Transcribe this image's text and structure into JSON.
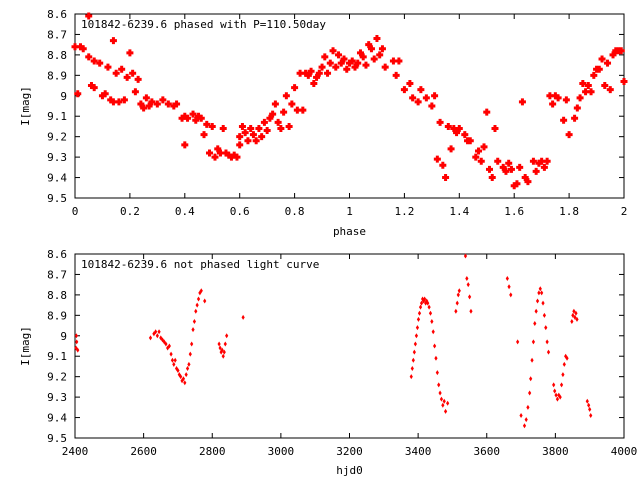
{
  "chart_data": [
    {
      "type": "scatter",
      "title": "101842-6239.6 phased with P=110.50day",
      "xlabel": "phase",
      "ylabel": "I[mag]",
      "xlim": [
        0,
        2
      ],
      "ylim": [
        8.6,
        9.5
      ],
      "y_inverted": true,
      "grid": false,
      "x_ticks": [
        "0",
        "0.2",
        "0.4",
        "0.6",
        "0.8",
        "1",
        "1.2",
        "1.4",
        "1.6",
        "1.8",
        "2"
      ],
      "y_ticks": [
        "8.6",
        "8.7",
        "8.8",
        "8.9",
        "9",
        "9.1",
        "9.2",
        "9.3",
        "9.4",
        "9.5"
      ],
      "marker_color": "#ff0000",
      "points": [
        [
          0.0,
          8.76
        ],
        [
          0.01,
          8.99
        ],
        [
          0.02,
          8.76
        ],
        [
          0.03,
          8.77
        ],
        [
          0.05,
          8.61
        ],
        [
          0.05,
          8.81
        ],
        [
          0.06,
          8.95
        ],
        [
          0.07,
          8.96
        ],
        [
          0.07,
          8.83
        ],
        [
          0.09,
          8.84
        ],
        [
          0.1,
          9.0
        ],
        [
          0.11,
          8.99
        ],
        [
          0.12,
          8.86
        ],
        [
          0.13,
          9.02
        ],
        [
          0.14,
          8.73
        ],
        [
          0.14,
          9.03
        ],
        [
          0.15,
          8.89
        ],
        [
          0.16,
          9.03
        ],
        [
          0.17,
          8.87
        ],
        [
          0.18,
          9.02
        ],
        [
          0.19,
          8.91
        ],
        [
          0.2,
          8.79
        ],
        [
          0.21,
          8.89
        ],
        [
          0.22,
          8.98
        ],
        [
          0.23,
          8.92
        ],
        [
          0.24,
          9.04
        ],
        [
          0.25,
          9.06
        ],
        [
          0.26,
          9.01
        ],
        [
          0.27,
          9.05
        ],
        [
          0.28,
          9.03
        ],
        [
          0.3,
          9.04
        ],
        [
          0.32,
          9.02
        ],
        [
          0.34,
          9.04
        ],
        [
          0.36,
          9.05
        ],
        [
          0.37,
          9.04
        ],
        [
          0.39,
          9.11
        ],
        [
          0.4,
          9.1
        ],
        [
          0.4,
          9.24
        ],
        [
          0.41,
          9.11
        ],
        [
          0.43,
          9.09
        ],
        [
          0.44,
          9.12
        ],
        [
          0.45,
          9.1
        ],
        [
          0.46,
          9.11
        ],
        [
          0.47,
          9.19
        ],
        [
          0.48,
          9.14
        ],
        [
          0.49,
          9.28
        ],
        [
          0.5,
          9.15
        ],
        [
          0.51,
          9.3
        ],
        [
          0.52,
          9.26
        ],
        [
          0.53,
          9.28
        ],
        [
          0.54,
          9.16
        ],
        [
          0.55,
          9.28
        ],
        [
          0.56,
          9.29
        ],
        [
          0.57,
          9.3
        ],
        [
          0.58,
          9.29
        ],
        [
          0.59,
          9.3
        ],
        [
          0.6,
          9.24
        ],
        [
          0.6,
          9.2
        ],
        [
          0.61,
          9.15
        ],
        [
          0.62,
          9.18
        ],
        [
          0.63,
          9.22
        ],
        [
          0.64,
          9.16
        ],
        [
          0.65,
          9.19
        ],
        [
          0.66,
          9.22
        ],
        [
          0.67,
          9.16
        ],
        [
          0.68,
          9.2
        ],
        [
          0.69,
          9.13
        ],
        [
          0.7,
          9.17
        ],
        [
          0.71,
          9.11
        ],
        [
          0.72,
          9.09
        ],
        [
          0.73,
          9.04
        ],
        [
          0.74,
          9.13
        ],
        [
          0.75,
          9.16
        ],
        [
          0.76,
          9.08
        ],
        [
          0.77,
          9.0
        ],
        [
          0.78,
          9.15
        ],
        [
          0.79,
          9.04
        ],
        [
          0.8,
          8.96
        ],
        [
          0.81,
          9.07
        ],
        [
          0.82,
          8.89
        ],
        [
          0.83,
          9.07
        ],
        [
          0.84,
          8.89
        ],
        [
          0.85,
          8.9
        ],
        [
          0.86,
          8.88
        ],
        [
          0.87,
          8.94
        ],
        [
          0.88,
          8.91
        ],
        [
          0.89,
          8.89
        ],
        [
          0.9,
          8.86
        ],
        [
          0.91,
          8.81
        ],
        [
          0.92,
          8.89
        ],
        [
          0.93,
          8.84
        ],
        [
          0.94,
          8.78
        ],
        [
          0.95,
          8.86
        ],
        [
          0.96,
          8.8
        ],
        [
          0.97,
          8.84
        ],
        [
          0.98,
          8.82
        ],
        [
          0.99,
          8.87
        ],
        [
          1.0,
          8.84
        ],
        [
          1.01,
          8.83
        ],
        [
          1.02,
          8.86
        ],
        [
          1.03,
          8.84
        ],
        [
          1.04,
          8.79
        ],
        [
          1.05,
          8.81
        ],
        [
          1.06,
          8.85
        ],
        [
          1.07,
          8.75
        ],
        [
          1.08,
          8.77
        ],
        [
          1.09,
          8.82
        ],
        [
          1.1,
          8.72
        ],
        [
          1.11,
          8.8
        ],
        [
          1.12,
          8.77
        ],
        [
          1.13,
          8.86
        ],
        [
          1.16,
          8.83
        ],
        [
          1.17,
          8.9
        ],
        [
          1.18,
          8.83
        ],
        [
          1.2,
          8.97
        ],
        [
          1.22,
          8.94
        ],
        [
          1.23,
          9.01
        ],
        [
          1.25,
          9.03
        ],
        [
          1.26,
          8.97
        ],
        [
          1.28,
          9.01
        ],
        [
          1.3,
          9.05
        ],
        [
          1.31,
          9.0
        ],
        [
          1.32,
          9.31
        ],
        [
          1.33,
          9.13
        ],
        [
          1.34,
          9.34
        ],
        [
          1.35,
          9.4
        ],
        [
          1.36,
          9.15
        ],
        [
          1.37,
          9.26
        ],
        [
          1.38,
          9.16
        ],
        [
          1.39,
          9.18
        ],
        [
          1.4,
          9.16
        ],
        [
          1.42,
          9.19
        ],
        [
          1.43,
          9.22
        ],
        [
          1.44,
          9.22
        ],
        [
          1.46,
          9.3
        ],
        [
          1.47,
          9.27
        ],
        [
          1.48,
          9.32
        ],
        [
          1.49,
          9.25
        ],
        [
          1.5,
          9.08
        ],
        [
          1.51,
          9.36
        ],
        [
          1.52,
          9.4
        ],
        [
          1.53,
          9.16
        ],
        [
          1.54,
          9.32
        ],
        [
          1.56,
          9.35
        ],
        [
          1.57,
          9.37
        ],
        [
          1.58,
          9.33
        ],
        [
          1.59,
          9.36
        ],
        [
          1.6,
          9.44
        ],
        [
          1.61,
          9.43
        ],
        [
          1.62,
          9.35
        ],
        [
          1.63,
          9.03
        ],
        [
          1.64,
          9.4
        ],
        [
          1.65,
          9.42
        ],
        [
          1.67,
          9.32
        ],
        [
          1.68,
          9.37
        ],
        [
          1.69,
          9.33
        ],
        [
          1.7,
          9.32
        ],
        [
          1.71,
          9.35
        ],
        [
          1.72,
          9.32
        ],
        [
          1.73,
          9.0
        ],
        [
          1.74,
          9.04
        ],
        [
          1.75,
          9.0
        ],
        [
          1.76,
          9.01
        ],
        [
          1.78,
          9.12
        ],
        [
          1.79,
          9.02
        ],
        [
          1.8,
          9.19
        ],
        [
          1.82,
          9.11
        ],
        [
          1.83,
          9.06
        ],
        [
          1.84,
          9.01
        ],
        [
          1.85,
          8.94
        ],
        [
          1.86,
          8.98
        ],
        [
          1.87,
          8.95
        ],
        [
          1.88,
          8.98
        ],
        [
          1.89,
          8.9
        ],
        [
          1.9,
          8.87
        ],
        [
          1.91,
          8.87
        ],
        [
          1.92,
          8.82
        ],
        [
          1.93,
          8.95
        ],
        [
          1.94,
          8.84
        ],
        [
          1.95,
          8.97
        ],
        [
          1.96,
          8.8
        ],
        [
          1.97,
          8.78
        ],
        [
          1.98,
          8.78
        ],
        [
          1.99,
          8.78
        ],
        [
          2.0,
          8.93
        ]
      ]
    },
    {
      "type": "scatter",
      "title": "101842-6239.6 not phased light curve",
      "xlabel": "hjd0",
      "ylabel": "I[mag]",
      "xlim": [
        2400,
        4000
      ],
      "ylim": [
        8.6,
        9.5
      ],
      "y_inverted": true,
      "grid": false,
      "x_ticks": [
        "2400",
        "2600",
        "2800",
        "3000",
        "3200",
        "3400",
        "3600",
        "3800",
        "4000"
      ],
      "y_ticks": [
        "8.6",
        "8.7",
        "8.8",
        "8.9",
        "9",
        "9.1",
        "9.2",
        "9.3",
        "9.4",
        "9.5"
      ],
      "marker_color": "#ff0000",
      "points": [
        [
          2403,
          9.06
        ],
        [
          2404,
          9.0
        ],
        [
          2405,
          9.03
        ],
        [
          2408,
          9.07
        ],
        [
          2620,
          9.01
        ],
        [
          2630,
          8.99
        ],
        [
          2635,
          8.98
        ],
        [
          2640,
          9.0
        ],
        [
          2645,
          8.98
        ],
        [
          2650,
          9.01
        ],
        [
          2655,
          9.02
        ],
        [
          2660,
          9.03
        ],
        [
          2665,
          9.04
        ],
        [
          2670,
          9.06
        ],
        [
          2675,
          9.05
        ],
        [
          2680,
          9.09
        ],
        [
          2684,
          9.12
        ],
        [
          2688,
          9.14
        ],
        [
          2692,
          9.12
        ],
        [
          2696,
          9.16
        ],
        [
          2700,
          9.17
        ],
        [
          2704,
          9.19
        ],
        [
          2708,
          9.2
        ],
        [
          2712,
          9.22
        ],
        [
          2716,
          9.21
        ],
        [
          2720,
          9.23
        ],
        [
          2724,
          9.19
        ],
        [
          2728,
          9.16
        ],
        [
          2732,
          9.14
        ],
        [
          2736,
          9.09
        ],
        [
          2740,
          9.04
        ],
        [
          2744,
          8.97
        ],
        [
          2748,
          8.93
        ],
        [
          2752,
          8.88
        ],
        [
          2756,
          8.85
        ],
        [
          2760,
          8.82
        ],
        [
          2764,
          8.79
        ],
        [
          2768,
          8.78
        ],
        [
          2778,
          8.83
        ],
        [
          2820,
          9.04
        ],
        [
          2823,
          9.06
        ],
        [
          2826,
          9.08
        ],
        [
          2829,
          9.07
        ],
        [
          2832,
          9.1
        ],
        [
          2835,
          9.08
        ],
        [
          2838,
          9.04
        ],
        [
          2842,
          9.0
        ],
        [
          2890,
          8.91
        ],
        [
          3380,
          9.2
        ],
        [
          3383,
          9.16
        ],
        [
          3386,
          9.12
        ],
        [
          3389,
          9.08
        ],
        [
          3392,
          9.04
        ],
        [
          3395,
          9.0
        ],
        [
          3398,
          8.96
        ],
        [
          3401,
          8.92
        ],
        [
          3404,
          8.89
        ],
        [
          3407,
          8.86
        ],
        [
          3410,
          8.84
        ],
        [
          3413,
          8.82
        ],
        [
          3416,
          8.83
        ],
        [
          3419,
          8.82
        ],
        [
          3422,
          8.84
        ],
        [
          3425,
          8.83
        ],
        [
          3428,
          8.84
        ],
        [
          3432,
          8.86
        ],
        [
          3436,
          8.89
        ],
        [
          3440,
          8.93
        ],
        [
          3444,
          8.98
        ],
        [
          3448,
          9.05
        ],
        [
          3452,
          9.11
        ],
        [
          3456,
          9.18
        ],
        [
          3460,
          9.24
        ],
        [
          3464,
          9.28
        ],
        [
          3468,
          9.31
        ],
        [
          3472,
          9.34
        ],
        [
          3476,
          9.32
        ],
        [
          3480,
          9.37
        ],
        [
          3486,
          9.33
        ],
        [
          3510,
          8.88
        ],
        [
          3514,
          8.84
        ],
        [
          3517,
          8.8
        ],
        [
          3520,
          8.78
        ],
        [
          3538,
          8.61
        ],
        [
          3542,
          8.72
        ],
        [
          3546,
          8.75
        ],
        [
          3550,
          8.81
        ],
        [
          3554,
          8.88
        ],
        [
          3660,
          8.72
        ],
        [
          3665,
          8.76
        ],
        [
          3670,
          8.8
        ],
        [
          3690,
          9.03
        ],
        [
          3700,
          9.39
        ],
        [
          3710,
          9.44
        ],
        [
          3715,
          9.41
        ],
        [
          3720,
          9.35
        ],
        [
          3725,
          9.28
        ],
        [
          3728,
          9.21
        ],
        [
          3732,
          9.12
        ],
        [
          3736,
          9.03
        ],
        [
          3740,
          8.94
        ],
        [
          3744,
          8.88
        ],
        [
          3748,
          8.83
        ],
        [
          3752,
          8.79
        ],
        [
          3756,
          8.77
        ],
        [
          3760,
          8.79
        ],
        [
          3764,
          8.84
        ],
        [
          3768,
          8.9
        ],
        [
          3772,
          8.96
        ],
        [
          3776,
          9.03
        ],
        [
          3780,
          9.08
        ],
        [
          3795,
          9.24
        ],
        [
          3798,
          9.27
        ],
        [
          3802,
          9.29
        ],
        [
          3806,
          9.31
        ],
        [
          3810,
          9.29
        ],
        [
          3814,
          9.3
        ],
        [
          3818,
          9.24
        ],
        [
          3822,
          9.19
        ],
        [
          3826,
          9.14
        ],
        [
          3830,
          9.1
        ],
        [
          3834,
          9.11
        ],
        [
          3848,
          8.93
        ],
        [
          3851,
          8.9
        ],
        [
          3854,
          8.88
        ],
        [
          3857,
          8.91
        ],
        [
          3860,
          8.89
        ],
        [
          3863,
          8.92
        ],
        [
          3893,
          9.32
        ],
        [
          3897,
          9.34
        ],
        [
          3900,
          9.36
        ],
        [
          3903,
          9.39
        ]
      ]
    }
  ]
}
